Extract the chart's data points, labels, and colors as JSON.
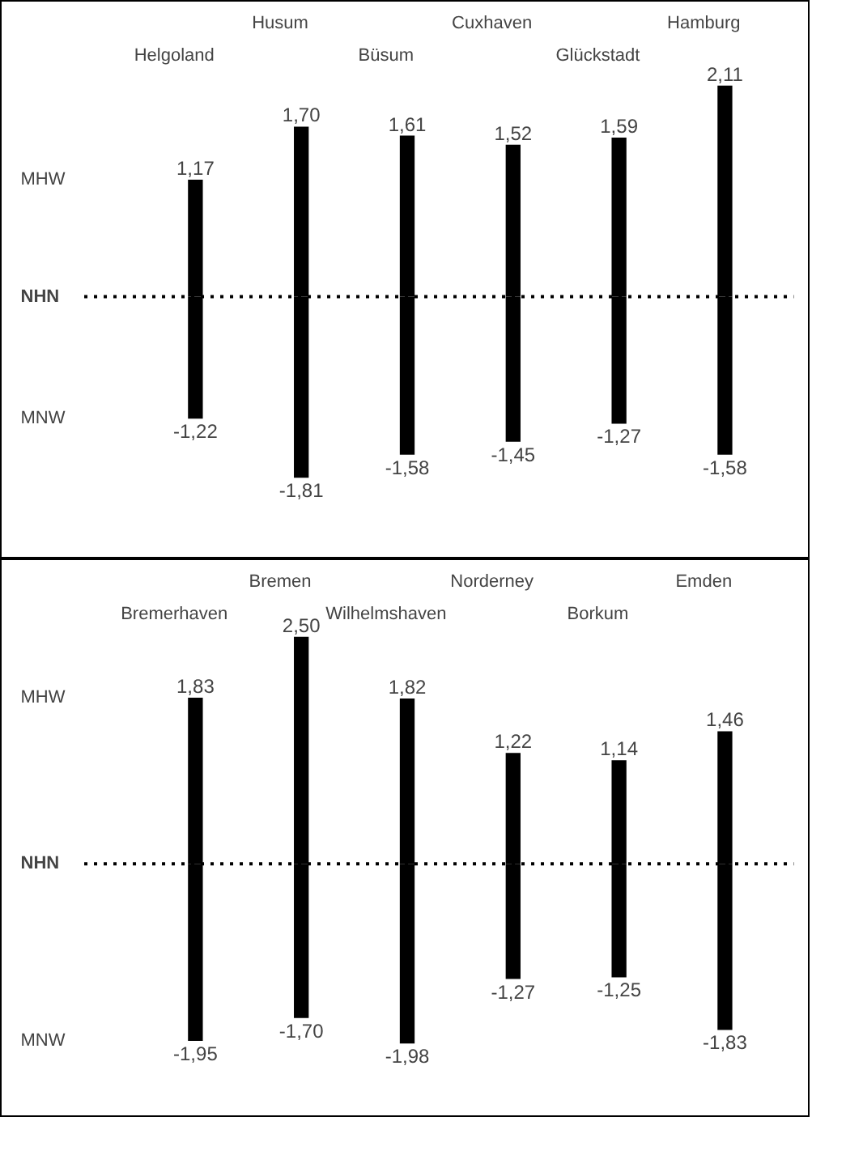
{
  "chart_data": [
    {
      "type": "bar",
      "stacked": true,
      "categories": [
        "Helgoland",
        "Husum",
        "Büsum",
        "Cuxhaven",
        "Glückstadt",
        "Hamburg"
      ],
      "series": [
        {
          "color": "#000000",
          "values": [
            1.17,
            1.7,
            1.61,
            1.52,
            1.59,
            2.11
          ],
          "value_labels": [
            "1,17",
            "1,70",
            "1,61",
            "1,52",
            "1,59",
            "2,11"
          ]
        },
        {
          "color": "#000000",
          "values": [
            -1.22,
            -1.81,
            -1.58,
            -1.45,
            -1.27,
            -1.58
          ],
          "value_labels": [
            "-1,22",
            "-1,81",
            "-1,58",
            "-1,45",
            "-1,27",
            "-1,58"
          ]
        }
      ],
      "annotations": [
        "MHW",
        "MNW"
      ],
      "ref_lines": [
        {
          "axis": "y",
          "value": 0,
          "label": "NHN",
          "line_style": "dotted",
          "color": "#000000"
        }
      ]
    },
    {
      "type": "bar",
      "stacked": true,
      "categories": [
        "Bremerhaven",
        "Bremen",
        "Wilhelmshaven",
        "Norderney",
        "Borkum",
        "Emden"
      ],
      "series": [
        {
          "color": "#000000",
          "values": [
            1.83,
            2.5,
            1.82,
            1.22,
            1.14,
            1.46
          ],
          "value_labels": [
            "1,83",
            "2,50",
            "1,82",
            "1,22",
            "1,14",
            "1,46"
          ]
        },
        {
          "color": "#000000",
          "values": [
            -1.95,
            -1.7,
            -1.98,
            -1.27,
            -1.25,
            -1.83
          ],
          "value_labels": [
            "-1,95",
            "-1,70",
            "-1,98",
            "-1,27",
            "-1,25",
            "-1,83"
          ]
        }
      ],
      "annotations": [
        "MHW",
        "MNW"
      ],
      "ref_lines": [
        {
          "axis": "y",
          "value": 0,
          "label": "NHN",
          "line_style": "dotted",
          "color": "#000000"
        }
      ]
    }
  ]
}
